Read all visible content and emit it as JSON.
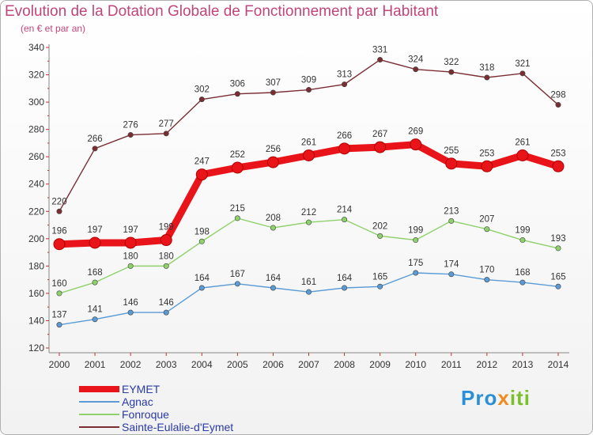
{
  "title": "Evolution de la Dotation Globale de Fonctionnement par Habitant",
  "subtitle": "(en € et par an)",
  "logo": {
    "part1": "Pro",
    "part2": "x",
    "part3": "iti"
  },
  "chart_data": {
    "type": "line",
    "title": "Evolution de la Dotation Globale de Fonctionnement par Habitant",
    "ylabel": "(en € et par an)",
    "xlabel": "",
    "ylim": [
      120,
      340
    ],
    "yticks": [
      120,
      140,
      160,
      180,
      200,
      220,
      240,
      260,
      280,
      300,
      320,
      340
    ],
    "categories": [
      "2000",
      "2001",
      "2002",
      "2003",
      "2004",
      "2005",
      "2006",
      "2007",
      "2008",
      "2009",
      "2010",
      "2011",
      "2012",
      "2013",
      "2014"
    ],
    "legend_position": "bottom-left",
    "series": [
      {
        "name": "EYMET",
        "color": "#e8141a",
        "emphasis": true,
        "values": [
          196,
          197,
          197,
          199,
          247,
          252,
          256,
          261,
          266,
          267,
          269,
          255,
          253,
          261,
          253
        ]
      },
      {
        "name": "Agnac",
        "color": "#5b9bd5",
        "values": [
          137,
          141,
          146,
          146,
          164,
          167,
          164,
          161,
          164,
          165,
          175,
          174,
          170,
          168,
          165
        ]
      },
      {
        "name": "Fonroque",
        "color": "#8fd16b",
        "values": [
          160,
          168,
          180,
          180,
          198,
          215,
          208,
          212,
          214,
          202,
          199,
          213,
          207,
          199,
          193
        ]
      },
      {
        "name": "Sainte-Eulalie-d'Eymet",
        "color": "#7a2e34",
        "values": [
          220,
          266,
          276,
          277,
          302,
          306,
          307,
          309,
          313,
          331,
          324,
          322,
          318,
          321,
          298
        ]
      }
    ]
  }
}
